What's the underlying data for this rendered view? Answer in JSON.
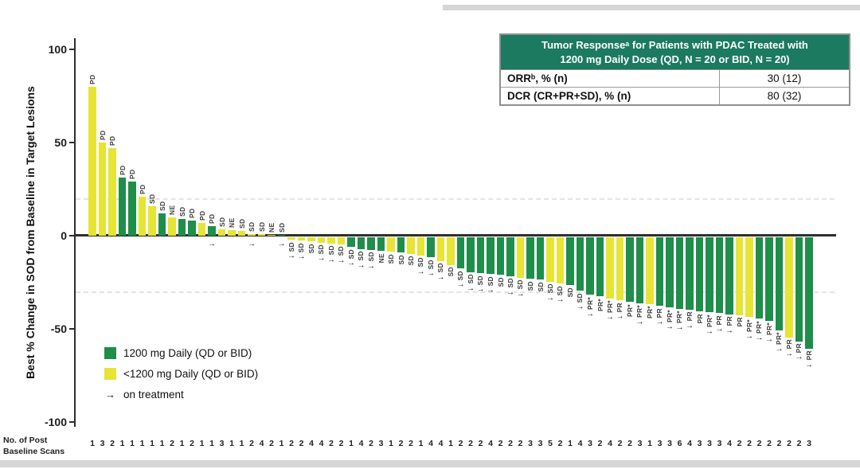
{
  "frame_note": "waterfall plot slide, white background with light gray video bands top-right and bottom",
  "table": {
    "header": "Tumor Responseᵃ for Patients with PDAC Treated with\n1200 mg Daily Dose (QD, N = 20 or BID, N = 20)",
    "header_bg": "#1b7a60",
    "rows": [
      {
        "label": "ORRᵇ, % (n)",
        "value": "30 (12)"
      },
      {
        "label": "DCR (CR+PR+SD), % (n)",
        "value": "80 (32)"
      }
    ]
  },
  "legend": {
    "items": [
      {
        "swatch": "#1e8e4a",
        "label": "1200 mg Daily (QD or BID)"
      },
      {
        "swatch": "#e6e434",
        "label": "<1200 mg Daily (QD or BID)"
      },
      {
        "swatch": "arrow",
        "label": "on treatment"
      }
    ]
  },
  "x_axis_note": "No. of Post\nBaseline Scans",
  "chart_data": {
    "type": "bar",
    "subtype": "waterfall",
    "title": "",
    "ylabel": "Best % Change in SOD from Baseline in Target Lesions",
    "ylim": [
      -100,
      100
    ],
    "yticks": [
      100,
      50,
      0,
      -50,
      -100
    ],
    "reference_lines_pct": [
      20,
      -30
    ],
    "grid": "off",
    "colors": {
      "dose_1200": "#1e8e4a",
      "dose_lt1200": "#e6e434"
    },
    "on_treatment_marker": "→",
    "bars": [
      {
        "value": 80,
        "dose": "lt1200",
        "response": "PD",
        "on_treatment": false,
        "scans": 1
      },
      {
        "value": 50,
        "dose": "lt1200",
        "response": "PD",
        "on_treatment": false,
        "scans": 3
      },
      {
        "value": 47,
        "dose": "lt1200",
        "response": "PD",
        "on_treatment": false,
        "scans": 2
      },
      {
        "value": 31,
        "dose": "1200",
        "response": "PD",
        "on_treatment": false,
        "scans": 1
      },
      {
        "value": 29,
        "dose": "1200",
        "response": "PD",
        "on_treatment": false,
        "scans": 1
      },
      {
        "value": 21,
        "dose": "lt1200",
        "response": "PD",
        "on_treatment": false,
        "scans": 1
      },
      {
        "value": 16,
        "dose": "lt1200",
        "response": "SD",
        "on_treatment": false,
        "scans": 1
      },
      {
        "value": 12,
        "dose": "1200",
        "response": "SD",
        "on_treatment": false,
        "scans": 1
      },
      {
        "value": 10,
        "dose": "lt1200",
        "response": "NE",
        "on_treatment": false,
        "scans": 2
      },
      {
        "value": 9,
        "dose": "1200",
        "response": "SD",
        "on_treatment": false,
        "scans": 1
      },
      {
        "value": 8,
        "dose": "1200",
        "response": "PD",
        "on_treatment": false,
        "scans": 2
      },
      {
        "value": 7,
        "dose": "lt1200",
        "response": "PD",
        "on_treatment": false,
        "scans": 1
      },
      {
        "value": 5,
        "dose": "1200",
        "response": "PD",
        "on_treatment": true,
        "scans": 1
      },
      {
        "value": 3.5,
        "dose": "lt1200",
        "response": "SD",
        "on_treatment": false,
        "scans": 3
      },
      {
        "value": 3,
        "dose": "lt1200",
        "response": "NE",
        "on_treatment": false,
        "scans": 1
      },
      {
        "value": 2.5,
        "dose": "lt1200",
        "response": "SD",
        "on_treatment": false,
        "scans": 1
      },
      {
        "value": 1,
        "dose": "lt1200",
        "response": "SD",
        "on_treatment": true,
        "scans": 2
      },
      {
        "value": 0.8,
        "dose": "lt1200",
        "response": "SD",
        "on_treatment": false,
        "scans": 4
      },
      {
        "value": 0.6,
        "dose": "lt1200",
        "response": "NE",
        "on_treatment": false,
        "scans": 2
      },
      {
        "value": 0.5,
        "dose": "1200",
        "response": "SD",
        "on_treatment": true,
        "scans": 1
      },
      {
        "value": -1.5,
        "dose": "lt1200",
        "response": "SD",
        "on_treatment": true,
        "scans": 2
      },
      {
        "value": -2,
        "dose": "lt1200",
        "response": "SD",
        "on_treatment": true,
        "scans": 2
      },
      {
        "value": -2.5,
        "dose": "lt1200",
        "response": "SD",
        "on_treatment": false,
        "scans": 4
      },
      {
        "value": -3,
        "dose": "lt1200",
        "response": "SD",
        "on_treatment": true,
        "scans": 4
      },
      {
        "value": -3.5,
        "dose": "lt1200",
        "response": "SD",
        "on_treatment": true,
        "scans": 2
      },
      {
        "value": -4,
        "dose": "lt1200",
        "response": "SD",
        "on_treatment": true,
        "scans": 2
      },
      {
        "value": -5.5,
        "dose": "1200",
        "response": "SD",
        "on_treatment": true,
        "scans": 1
      },
      {
        "value": -6.5,
        "dose": "1200",
        "response": "SD",
        "on_treatment": true,
        "scans": 4
      },
      {
        "value": -7,
        "dose": "1200",
        "response": "SD",
        "on_treatment": true,
        "scans": 2
      },
      {
        "value": -7.5,
        "dose": "1200",
        "response": "NE",
        "on_treatment": false,
        "scans": 3
      },
      {
        "value": -8,
        "dose": "lt1200",
        "response": "SD",
        "on_treatment": false,
        "scans": 1
      },
      {
        "value": -8.5,
        "dose": "1200",
        "response": "SD",
        "on_treatment": false,
        "scans": 2
      },
      {
        "value": -9,
        "dose": "lt1200",
        "response": "SD",
        "on_treatment": false,
        "scans": 2
      },
      {
        "value": -10,
        "dose": "lt1200",
        "response": "SD",
        "on_treatment": true,
        "scans": 1
      },
      {
        "value": -11,
        "dose": "1200",
        "response": "SD",
        "on_treatment": true,
        "scans": 4
      },
      {
        "value": -13,
        "dose": "lt1200",
        "response": "SD",
        "on_treatment": true,
        "scans": 4
      },
      {
        "value": -15,
        "dose": "lt1200",
        "response": "SD",
        "on_treatment": false,
        "scans": 1
      },
      {
        "value": -17,
        "dose": "1200",
        "response": "SD",
        "on_treatment": true,
        "scans": 2
      },
      {
        "value": -19,
        "dose": "1200",
        "response": "SD",
        "on_treatment": true,
        "scans": 2
      },
      {
        "value": -19.5,
        "dose": "1200",
        "response": "SD",
        "on_treatment": true,
        "scans": 2
      },
      {
        "value": -20,
        "dose": "1200",
        "response": "SD",
        "on_treatment": true,
        "scans": 4
      },
      {
        "value": -20.5,
        "dose": "1200",
        "response": "SD",
        "on_treatment": false,
        "scans": 2
      },
      {
        "value": -21,
        "dose": "1200",
        "response": "SD",
        "on_treatment": true,
        "scans": 2
      },
      {
        "value": -22,
        "dose": "lt1200",
        "response": "SD",
        "on_treatment": true,
        "scans": 2
      },
      {
        "value": -22.5,
        "dose": "1200",
        "response": "SD",
        "on_treatment": false,
        "scans": 3
      },
      {
        "value": -23,
        "dose": "1200",
        "response": "SD",
        "on_treatment": false,
        "scans": 3
      },
      {
        "value": -24,
        "dose": "lt1200",
        "response": "SD",
        "on_treatment": true,
        "scans": 5
      },
      {
        "value": -25,
        "dose": "lt1200",
        "response": "SD",
        "on_treatment": true,
        "scans": 2
      },
      {
        "value": -26,
        "dose": "1200",
        "response": "SD",
        "on_treatment": false,
        "scans": 1
      },
      {
        "value": -29,
        "dose": "1200",
        "response": "SD",
        "on_treatment": true,
        "scans": 4
      },
      {
        "value": -31,
        "dose": "1200",
        "response": "PR*",
        "on_treatment": true,
        "scans": 3
      },
      {
        "value": -32,
        "dose": "1200",
        "response": "PR*",
        "on_treatment": false,
        "scans": 2
      },
      {
        "value": -33,
        "dose": "lt1200",
        "response": "PR*",
        "on_treatment": true,
        "scans": 4
      },
      {
        "value": -34,
        "dose": "lt1200",
        "response": "PR",
        "on_treatment": true,
        "scans": 2
      },
      {
        "value": -35,
        "dose": "1200",
        "response": "PR*",
        "on_treatment": false,
        "scans": 2
      },
      {
        "value": -35.5,
        "dose": "1200",
        "response": "PR*",
        "on_treatment": true,
        "scans": 3
      },
      {
        "value": -36,
        "dose": "lt1200",
        "response": "PR*",
        "on_treatment": false,
        "scans": 1
      },
      {
        "value": -37,
        "dose": "1200",
        "response": "PR",
        "on_treatment": true,
        "scans": 3
      },
      {
        "value": -38,
        "dose": "1200",
        "response": "PR*",
        "on_treatment": true,
        "scans": 3
      },
      {
        "value": -38.5,
        "dose": "1200",
        "response": "PR*",
        "on_treatment": true,
        "scans": 6
      },
      {
        "value": -39,
        "dose": "1200",
        "response": "PR",
        "on_treatment": true,
        "scans": 4
      },
      {
        "value": -40,
        "dose": "1200",
        "response": "PR",
        "on_treatment": false,
        "scans": 3
      },
      {
        "value": -40.5,
        "dose": "1200",
        "response": "PR*",
        "on_treatment": true,
        "scans": 3
      },
      {
        "value": -41,
        "dose": "1200",
        "response": "PR",
        "on_treatment": true,
        "scans": 3
      },
      {
        "value": -41.5,
        "dose": "1200",
        "response": "PR",
        "on_treatment": true,
        "scans": 4
      },
      {
        "value": -42,
        "dose": "lt1200",
        "response": "PR",
        "on_treatment": false,
        "scans": 2
      },
      {
        "value": -43,
        "dose": "lt1200",
        "response": "PR*",
        "on_treatment": true,
        "scans": 2
      },
      {
        "value": -44,
        "dose": "1200",
        "response": "PR*",
        "on_treatment": true,
        "scans": 2
      },
      {
        "value": -45,
        "dose": "1200",
        "response": "PR*",
        "on_treatment": true,
        "scans": 2
      },
      {
        "value": -50,
        "dose": "1200",
        "response": "PR*",
        "on_treatment": true,
        "scans": 2
      },
      {
        "value": -54,
        "dose": "lt1200",
        "response": "PR",
        "on_treatment": true,
        "scans": 2
      },
      {
        "value": -56,
        "dose": "1200",
        "response": "PR",
        "on_treatment": true,
        "scans": 2
      },
      {
        "value": -60,
        "dose": "1200",
        "response": "PR",
        "on_treatment": true,
        "scans": 3
      }
    ]
  }
}
